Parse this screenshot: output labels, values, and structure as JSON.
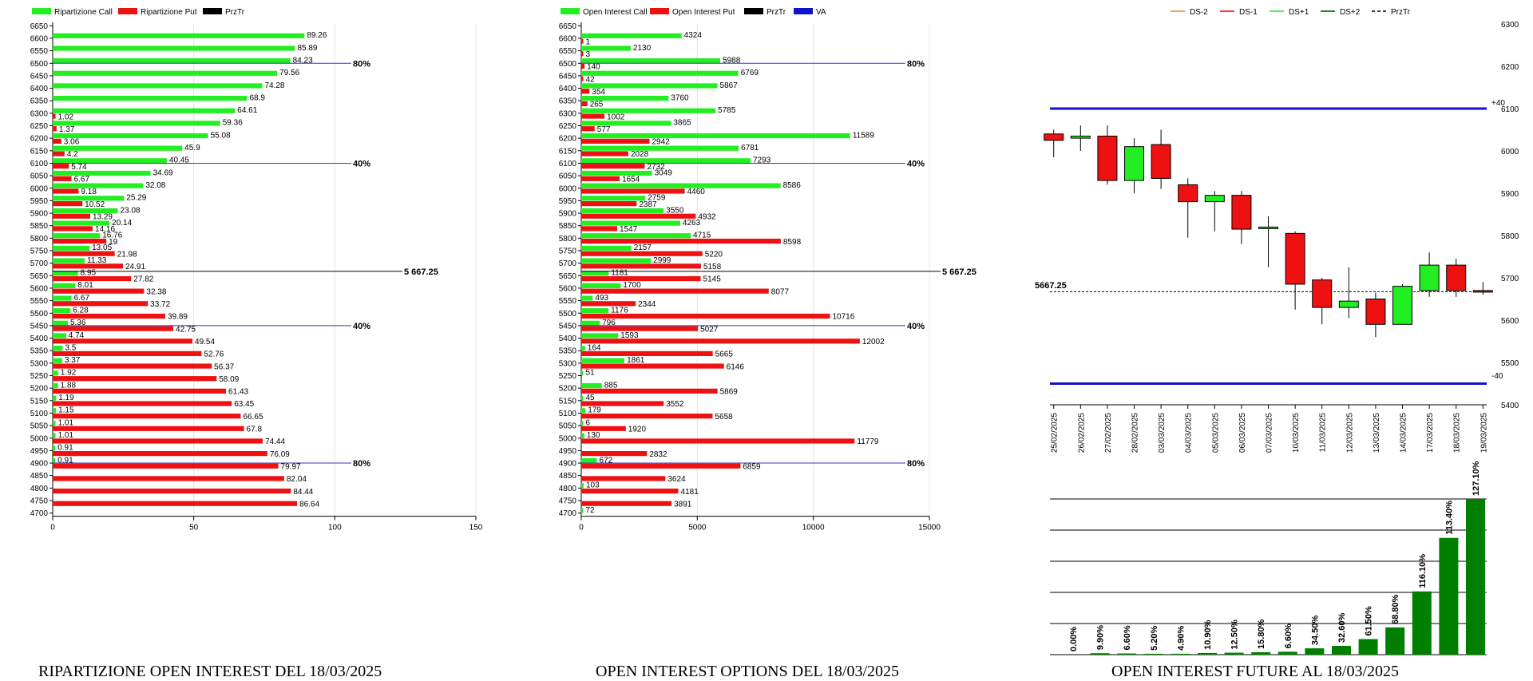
{
  "colors": {
    "call": "#22ee22",
    "put": "#ee1111",
    "price_line": "#000000",
    "va": "#1111cc",
    "bull": "#22ee22",
    "bear": "#ee1111",
    "future_bar": "#007f00",
    "ref_line": "#3333cc",
    "ds_minus2": "#f4a460",
    "ds_minus1": "#ff4040",
    "ds_plus1": "#55ee55",
    "ds_plus2": "#228b22"
  },
  "charts": {
    "ripartizione": {
      "title": "RIPARTIZIONE OPEN INTEREST DEL 18/03/2025",
      "legend": [
        "Ripartizione Call",
        "Ripartizione Put",
        "PrzTr"
      ],
      "x_ticks": [
        "0",
        "50",
        "100",
        "150"
      ],
      "price_label": "5 667.25",
      "markers": [
        {
          "strike": 6500,
          "label": "80%"
        },
        {
          "strike": 6100,
          "label": "40%"
        },
        {
          "strike": 5450,
          "label": "40%"
        },
        {
          "strike": 4900,
          "label": "80%"
        }
      ]
    },
    "options": {
      "title": "OPEN INTEREST OPTIONS DEL 18/03/2025",
      "legend": [
        "Open Interest Call",
        "Open Interest Put",
        "PrzTr",
        "VA"
      ],
      "x_ticks": [
        "0",
        "5000",
        "10000",
        "15000"
      ],
      "price_label": "5 667.25",
      "markers": [
        {
          "strike": 6500,
          "label": "80%"
        },
        {
          "strike": 6100,
          "label": "40%"
        },
        {
          "strike": 5450,
          "label": "40%"
        },
        {
          "strike": 4900,
          "label": "80%"
        }
      ]
    },
    "candles": {
      "legend": [
        "DS-2",
        "DS-1",
        "DS+1",
        "DS+2",
        "PrzTr"
      ],
      "y_ticks": [
        "6300",
        "6200",
        "6100",
        "6000",
        "5900",
        "5800",
        "5700",
        "5600",
        "5500",
        "5400"
      ],
      "price_label": "5667.25",
      "upper_label": "+40",
      "lower_label": "-40"
    },
    "future": {
      "title": "OPEN INTEREST FUTURE AL 18/03/2025"
    }
  },
  "chart_data": [
    {
      "type": "bar",
      "orientation": "horizontal",
      "title": "RIPARTIZIONE OPEN INTEREST DEL 18/03/2025",
      "categories": [
        6650,
        6600,
        6550,
        6500,
        6450,
        6400,
        6350,
        6300,
        6250,
        6200,
        6150,
        6100,
        6050,
        6000,
        5950,
        5900,
        5850,
        5800,
        5750,
        5700,
        5650,
        5600,
        5550,
        5500,
        5450,
        5400,
        5350,
        5300,
        5250,
        5200,
        5150,
        5100,
        5050,
        5000,
        4950,
        4900,
        4850,
        4800,
        4750,
        4700
      ],
      "series": [
        {
          "name": "Ripartizione Call",
          "values": [
            null,
            89.26,
            85.89,
            84.23,
            79.56,
            74.28,
            68.9,
            64.61,
            59.36,
            55.08,
            45.9,
            40.45,
            34.69,
            32.08,
            25.29,
            23.08,
            20.14,
            16.76,
            13.05,
            11.33,
            8.95,
            8.01,
            6.67,
            6.28,
            5.36,
            4.74,
            3.5,
            3.37,
            1.92,
            1.88,
            1.19,
            1.15,
            1.01,
            1.01,
            0.91,
            0.91,
            null,
            null,
            null,
            null
          ]
        },
        {
          "name": "Ripartizione Put",
          "values": [
            null,
            null,
            null,
            null,
            null,
            null,
            null,
            1.02,
            1.37,
            3.06,
            4.2,
            5.74,
            6.67,
            9.18,
            10.52,
            13.29,
            14.16,
            19,
            21.98,
            24.91,
            27.82,
            32.38,
            33.72,
            39.89,
            42.75,
            49.54,
            52.76,
            56.37,
            58.09,
            61.43,
            63.45,
            66.65,
            67.8,
            74.44,
            76.09,
            79.97,
            82.04,
            84.44,
            86.64,
            null
          ]
        }
      ],
      "price": 5667.25,
      "xlim": [
        0,
        150
      ]
    },
    {
      "type": "bar",
      "orientation": "horizontal",
      "title": "OPEN INTEREST OPTIONS DEL 18/03/2025",
      "categories": [
        6650,
        6600,
        6550,
        6500,
        6450,
        6400,
        6350,
        6300,
        6250,
        6200,
        6150,
        6100,
        6050,
        6000,
        5950,
        5900,
        5850,
        5800,
        5750,
        5700,
        5650,
        5600,
        5550,
        5500,
        5450,
        5400,
        5350,
        5300,
        5250,
        5200,
        5150,
        5100,
        5050,
        5000,
        4950,
        4900,
        4850,
        4800,
        4750,
        4700
      ],
      "series": [
        {
          "name": "Open Interest Call",
          "values": [
            null,
            4324,
            2130,
            5988,
            6769,
            5867,
            3760,
            5785,
            3865,
            11589,
            6781,
            7293,
            3049,
            8586,
            2759,
            3550,
            4263,
            4715,
            2157,
            2999,
            1181,
            1700,
            493,
            1176,
            796,
            1593,
            164,
            1861,
            51,
            885,
            45,
            179,
            6,
            130,
            null,
            672,
            null,
            103,
            null,
            72
          ]
        },
        {
          "name": "Open Interest Put",
          "values": [
            null,
            1,
            3,
            140,
            42,
            354,
            265,
            1002,
            577,
            2942,
            2028,
            2732,
            1654,
            4460,
            2387,
            4932,
            1547,
            8598,
            5220,
            5158,
            5145,
            8077,
            2344,
            10716,
            5027,
            12002,
            5665,
            6146,
            null,
            5869,
            3552,
            5658,
            1920,
            11779,
            2832,
            6859,
            3624,
            4181,
            3891,
            null
          ]
        }
      ],
      "price": 5667.25,
      "xlim": [
        0,
        15000
      ]
    },
    {
      "type": "candlestick",
      "legend": [
        "DS-2",
        "DS-1",
        "DS+1",
        "DS+2",
        "PrzTr"
      ],
      "x": [
        "25/02/2025",
        "26/02/2025",
        "27/02/2025",
        "28/02/2025",
        "03/03/2025",
        "04/03/2025",
        "05/03/2025",
        "06/03/2025",
        "07/03/2025",
        "10/03/2025",
        "11/03/2025",
        "12/03/2025",
        "13/03/2025",
        "14/03/2025",
        "17/03/2025",
        "18/03/2025",
        "19/03/2025"
      ],
      "open": [
        6040,
        6030,
        6035,
        5930,
        6015,
        5920,
        5880,
        5895,
        5820,
        5805,
        5695,
        5630,
        5650,
        5590,
        5670,
        5730,
        5670
      ],
      "high": [
        6050,
        6060,
        6060,
        6030,
        6050,
        5935,
        5905,
        5905,
        5845,
        5810,
        5700,
        5725,
        5665,
        5685,
        5760,
        5745,
        5690
      ],
      "low": [
        5985,
        6000,
        5920,
        5900,
        5910,
        5795,
        5810,
        5780,
        5725,
        5625,
        5590,
        5605,
        5560,
        5590,
        5655,
        5655,
        5660
      ],
      "close": [
        6025,
        6035,
        5930,
        6010,
        5935,
        5880,
        5895,
        5815,
        5820,
        5685,
        5630,
        5645,
        5590,
        5680,
        5730,
        5670,
        5668
      ],
      "price": 5667.25,
      "ylim": [
        5400,
        6300
      ],
      "ref_upper": 6100,
      "ref_lower": 5450
    },
    {
      "type": "bar",
      "title": "OPEN INTEREST FUTURE AL 18/03/2025",
      "categories": [
        "25/02/2025",
        "26/02/2025",
        "27/02/2025",
        "28/02/2025",
        "03/03/2025",
        "04/03/2025",
        "05/03/2025",
        "06/03/2025",
        "07/03/2025",
        "10/03/2025",
        "11/03/2025",
        "12/03/2025",
        "13/03/2025",
        "14/03/2025",
        "17/03/2025",
        "18/03/2025",
        "19/03/2025"
      ],
      "labels": [
        "0.00%",
        "9.90%",
        "6.60%",
        "5.20%",
        "4.90%",
        "10.90%",
        "12.50%",
        "15.80%",
        "6.60%",
        "34.50%",
        "32.60%",
        "61.50%",
        "68.80%",
        "116.10%",
        "113.40%",
        "127.10%"
      ],
      "values": [
        0.0,
        1.5,
        1.2,
        0.9,
        0.9,
        1.7,
        2.0,
        2.5,
        3.0,
        6.5,
        9.0,
        16.0,
        28.0,
        65.0,
        120.0,
        160.0
      ]
    }
  ]
}
